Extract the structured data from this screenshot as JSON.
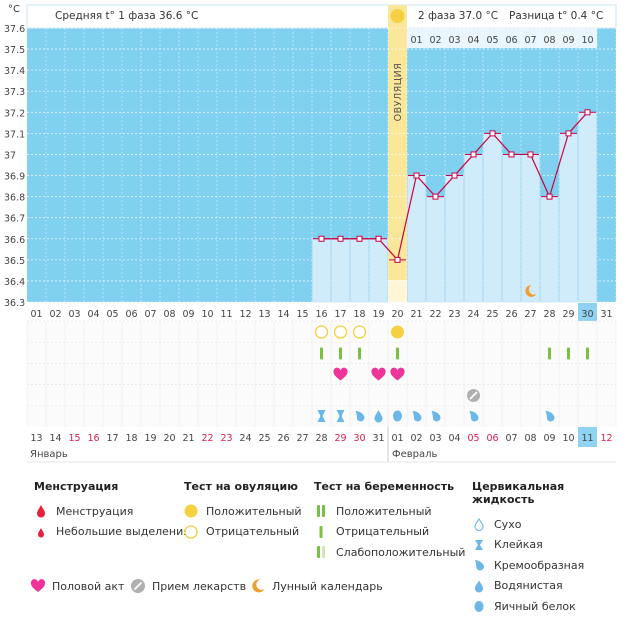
{
  "unit": "°C",
  "header": {
    "phase1": "Средняя t° 1 фаза 36.6 °C",
    "phase2": "2 фаза 37.0 °C",
    "diff": "Разница t° 0.4 °C"
  },
  "ovulation_label": "ОВУЛЯЦИЯ",
  "colors": {
    "sky": "#80d0f0",
    "bar": "#d0ecfa",
    "line": "#cc0044",
    "ovulation": "#fbe79a",
    "sun": "#f5d040",
    "test": "#7ac143",
    "heart": "#ee3399",
    "drop": "#6ab7e8",
    "moon": "#f0a030"
  },
  "chart_data": {
    "type": "line",
    "title": "",
    "ylabel": "°C",
    "ylim": [
      36.3,
      37.6
    ],
    "yticks": [
      36.3,
      36.4,
      36.5,
      36.6,
      36.7,
      36.8,
      36.9,
      37,
      37.1,
      37.2,
      37.3,
      37.4,
      37.5,
      37.6
    ],
    "ytick_labels": [
      "36.3",
      "36.4",
      "36.5",
      "36.6",
      "36.7",
      "36.8",
      "36.9",
      "37",
      "37.1",
      "37.2",
      "37.3",
      "37.4",
      "37.5",
      "37.6"
    ],
    "cycle_days": [
      "01",
      "02",
      "03",
      "04",
      "05",
      "06",
      "07",
      "08",
      "09",
      "10",
      "11",
      "12",
      "13",
      "14",
      "15",
      "16",
      "17",
      "18",
      "19",
      "20",
      "21",
      "22",
      "23",
      "24",
      "25",
      "26",
      "27",
      "28",
      "29",
      "30",
      "31"
    ],
    "phase2_days": [
      "01",
      "02",
      "03",
      "04",
      "05",
      "06",
      "07",
      "08",
      "09",
      "10"
    ],
    "series": [
      {
        "name": "Базальная температура",
        "days": [
          16,
          17,
          18,
          19,
          20,
          21,
          22,
          23,
          24,
          25,
          26,
          27,
          28,
          29,
          30
        ],
        "values": [
          36.6,
          36.6,
          36.6,
          36.6,
          36.5,
          36.9,
          36.8,
          36.9,
          37.0,
          37.1,
          37.0,
          37.0,
          36.8,
          37.1,
          37.2
        ]
      }
    ],
    "ovulation_day": 20,
    "highlight_day": 30
  },
  "markers": {
    "ovulation_tests": [
      {
        "day": 16,
        "type": "negative"
      },
      {
        "day": 17,
        "type": "negative"
      },
      {
        "day": 18,
        "type": "negative"
      },
      {
        "day": 20,
        "type": "positive"
      }
    ],
    "pregnancy_tests": [
      {
        "day": 16,
        "type": "negative"
      },
      {
        "day": 17,
        "type": "negative"
      },
      {
        "day": 18,
        "type": "negative"
      },
      {
        "day": 20,
        "type": "negative"
      },
      {
        "day": 28,
        "type": "negative"
      },
      {
        "day": 29,
        "type": "negative"
      },
      {
        "day": 30,
        "type": "negative"
      }
    ],
    "intercourse": [
      17,
      19,
      20
    ],
    "medication": [
      24
    ],
    "lunar": [
      27
    ],
    "mucus": [
      {
        "day": 16,
        "type": "sticky"
      },
      {
        "day": 17,
        "type": "sticky"
      },
      {
        "day": 18,
        "type": "creamy"
      },
      {
        "day": 19,
        "type": "watery"
      },
      {
        "day": 20,
        "type": "eggwhite"
      },
      {
        "day": 21,
        "type": "creamy"
      },
      {
        "day": 22,
        "type": "creamy"
      },
      {
        "day": 24,
        "type": "creamy"
      },
      {
        "day": 28,
        "type": "creamy"
      }
    ]
  },
  "dates": {
    "labels": [
      "13",
      "14",
      "15",
      "16",
      "17",
      "18",
      "19",
      "20",
      "21",
      "22",
      "23",
      "24",
      "25",
      "26",
      "27",
      "28",
      "29",
      "30",
      "31",
      "01",
      "02",
      "03",
      "04",
      "05",
      "06",
      "07",
      "08",
      "09",
      "10",
      "11",
      "12"
    ],
    "weekend_indices": [
      2,
      3,
      9,
      10,
      16,
      17,
      23,
      24,
      30
    ],
    "today_index": 29,
    "month1": "Январь",
    "month2": "Февраль"
  },
  "legend": {
    "menstruation": {
      "title": "Менструация",
      "items": [
        "Менструация",
        "Небольшие выделения"
      ]
    },
    "ovulation_test": {
      "title": "Тест на овуляцию",
      "items": [
        "Положительный",
        "Отрицательный"
      ]
    },
    "pregnancy_test": {
      "title": "Тест на беременность",
      "items": [
        "Положительный",
        "Отрицательный",
        "Слабоположительный"
      ]
    },
    "cervical": {
      "title": "Цервикальная жидкость",
      "items": [
        "Сухо",
        "Клейкая",
        "Кремообразная",
        "Водянистая",
        "Яичный белок"
      ]
    },
    "bottom": [
      "Половой акт",
      "Прием лекарств",
      "Лунный календарь"
    ]
  }
}
